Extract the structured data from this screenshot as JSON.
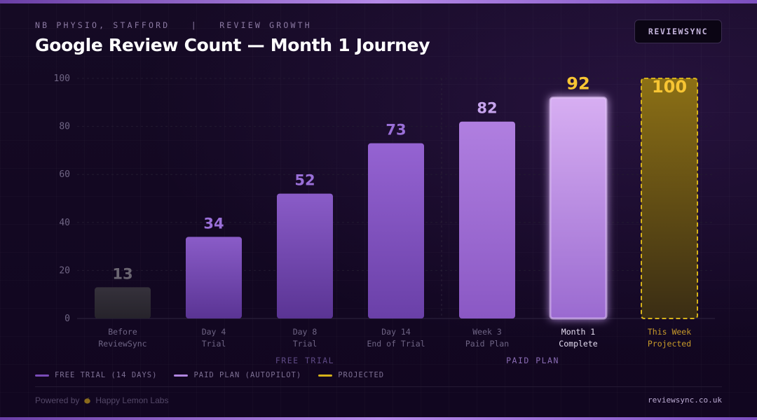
{
  "header": {
    "eyebrow": "NB PHYSIO, STAFFORD   |   REVIEW GROWTH",
    "title": "Google Review Count — Month 1 Journey",
    "brand_button": "REVIEWSYNC"
  },
  "colors": {
    "before": "#2e2a33",
    "free_trial": "#7a4bb8",
    "paid_plan": "#b185e0",
    "highlight": "#c9a0ee",
    "projected": "#d6b21a",
    "label_gold": "#f7c533"
  },
  "chart_data": {
    "type": "bar",
    "ylim": [
      0,
      100
    ],
    "yticks": [
      0,
      20,
      40,
      60,
      80,
      100
    ],
    "categories": [
      [
        "Before",
        "ReviewSync"
      ],
      [
        "Day 4",
        "Trial"
      ],
      [
        "Day 8",
        "Trial"
      ],
      [
        "Day 14",
        "End of Trial"
      ],
      [
        "Week 3",
        "Paid Plan"
      ],
      [
        "Month 1",
        "Complete"
      ],
      [
        "This Week",
        "Projected"
      ]
    ],
    "values": [
      13,
      34,
      52,
      73,
      82,
      92,
      100
    ],
    "phases": [
      "before",
      "free",
      "free",
      "free",
      "paid",
      "highlight",
      "projected"
    ],
    "group_labels": [
      {
        "label": "FREE TRIAL",
        "from": 1,
        "to": 3
      },
      {
        "label": "PAID PLAN",
        "from": 4,
        "to": 5
      }
    ]
  },
  "legend": [
    {
      "label": "FREE TRIAL (14 DAYS)",
      "color": "#7a4bb8"
    },
    {
      "label": "PAID PLAN (AUTOPILOT)",
      "color": "#b185e0"
    },
    {
      "label": "PROJECTED",
      "color": "#d6b21a"
    }
  ],
  "footer": {
    "powered_prefix": "Powered by",
    "powered_name": "Happy Lemon Labs",
    "site": "reviewsync.co.uk"
  }
}
